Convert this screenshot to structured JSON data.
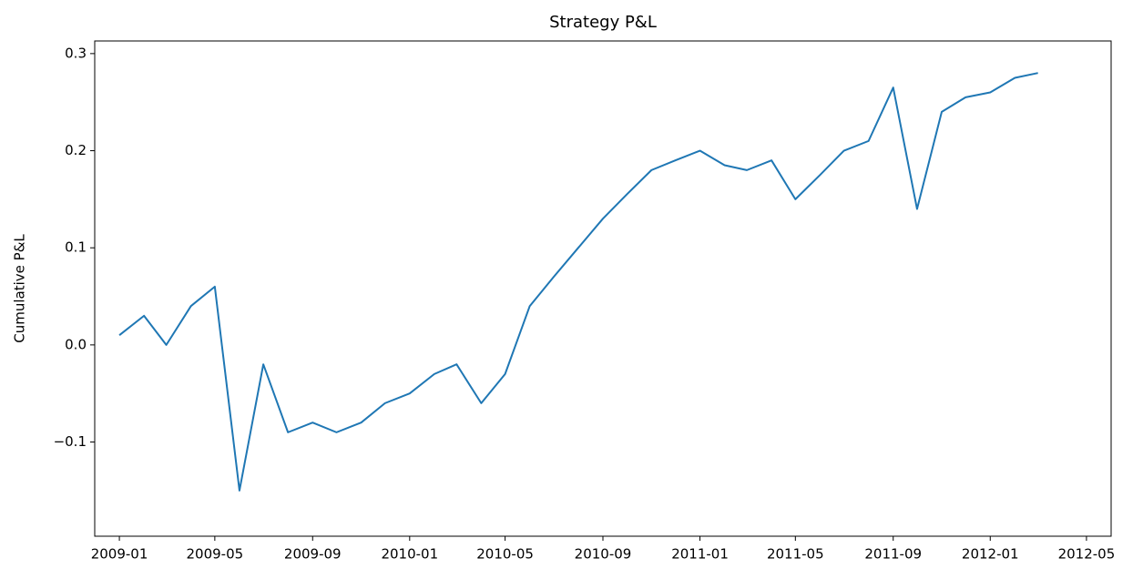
{
  "chart_data": {
    "type": "line",
    "title": "Strategy P&L",
    "y_label": "Cumulative P&L",
    "x": [
      "2009-01",
      "2009-02",
      "2009-03",
      "2009-04",
      "2009-05",
      "2009-06",
      "2009-07",
      "2009-08",
      "2009-09",
      "2009-10",
      "2009-11",
      "2009-12",
      "2010-01",
      "2010-02",
      "2010-03",
      "2010-04",
      "2010-05",
      "2010-06",
      "2010-07",
      "2010-08",
      "2010-09",
      "2010-10",
      "2010-11",
      "2010-12",
      "2011-01",
      "2011-02",
      "2011-03",
      "2011-04",
      "2011-05",
      "2011-06",
      "2011-07",
      "2011-08",
      "2011-09",
      "2011-10",
      "2011-11",
      "2011-12",
      "2012-01",
      "2012-02",
      "2012-03"
    ],
    "series": [
      {
        "name": "Cumulative P&L",
        "color": "#1f77b4",
        "values": [
          0.01,
          0.03,
          0.0,
          0.04,
          0.06,
          -0.15,
          -0.02,
          -0.09,
          -0.08,
          -0.09,
          -0.08,
          -0.06,
          -0.05,
          -0.03,
          -0.02,
          -0.06,
          -0.03,
          0.04,
          0.07,
          0.1,
          0.13,
          0.155,
          0.18,
          0.19,
          0.2,
          0.185,
          0.18,
          0.19,
          0.15,
          0.175,
          0.2,
          0.21,
          0.265,
          0.14,
          0.24,
          0.255,
          0.26,
          0.275,
          0.28
        ]
      }
    ],
    "xlim": [
      "2008-12",
      "2012-06"
    ],
    "xticks": [
      "2009-01",
      "2009-05",
      "2009-09",
      "2010-01",
      "2010-05",
      "2010-09",
      "2011-01",
      "2011-05",
      "2011-09",
      "2012-01",
      "2012-05"
    ],
    "ylim": [
      -0.197,
      0.313
    ],
    "yticks": [
      {
        "value": -0.1,
        "label": "−0.1"
      },
      {
        "value": 0,
        "label": "0.0"
      },
      0.1,
      0.2,
      0.3
    ],
    "grid": false
  }
}
